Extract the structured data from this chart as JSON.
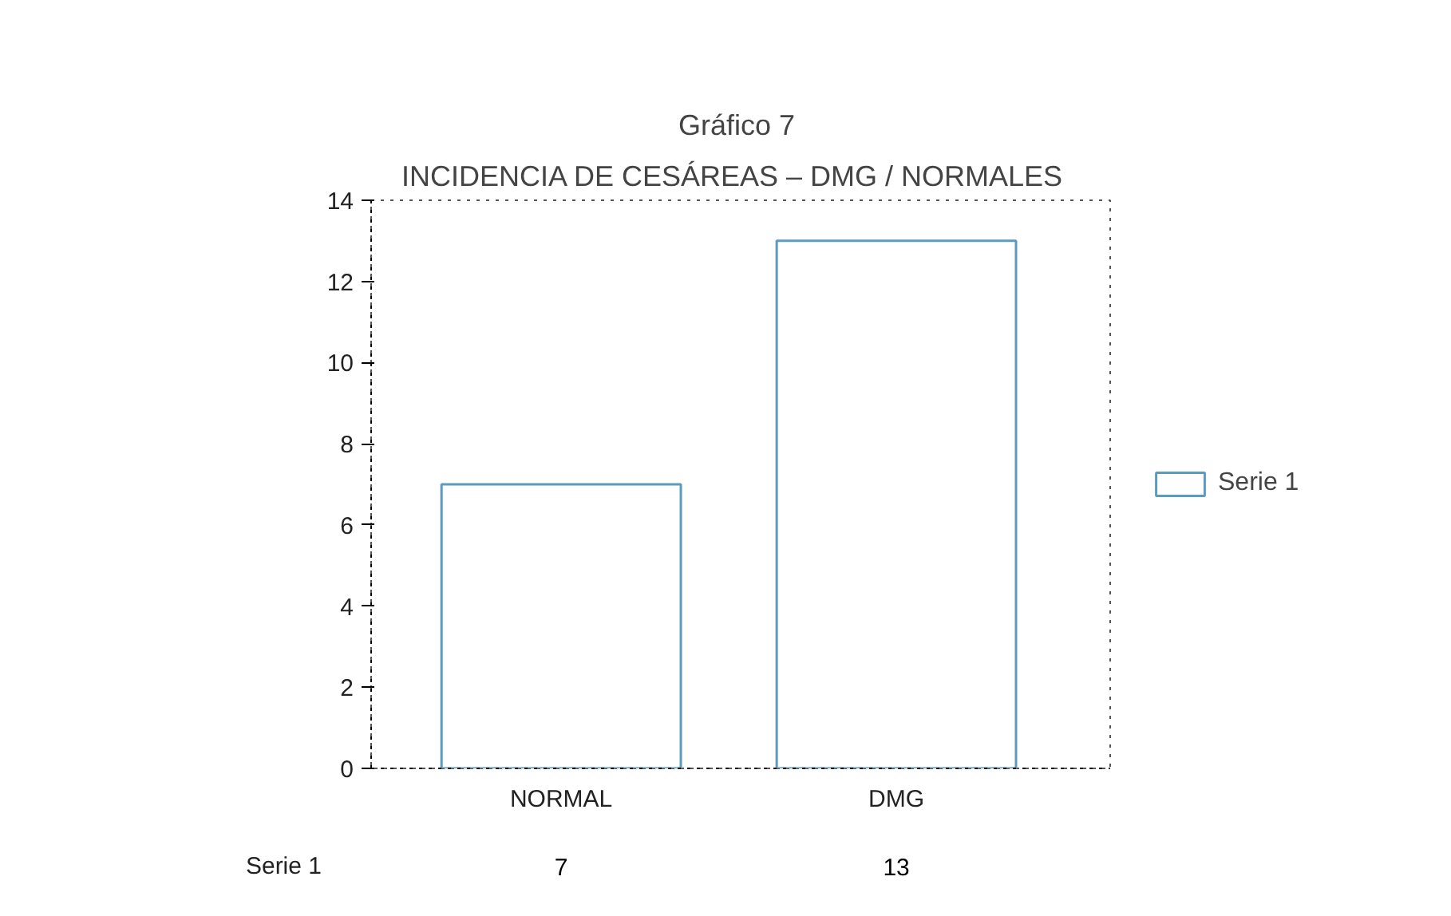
{
  "chart_data": {
    "type": "bar",
    "title": "Gráfico  7",
    "subtitle": "INCIDENCIA DE CESÁREAS  –  DMG / NORMALES",
    "categories": [
      "NORMAL",
      "DMG"
    ],
    "series": [
      {
        "name": "Serie 1",
        "color": "#5b9bbf",
        "values": [
          7,
          13
        ]
      }
    ],
    "ylim": [
      0,
      14
    ],
    "yticks": [
      0,
      2,
      4,
      6,
      8,
      10,
      12,
      14
    ],
    "grid": false,
    "legend": "right",
    "data_labels": true
  }
}
